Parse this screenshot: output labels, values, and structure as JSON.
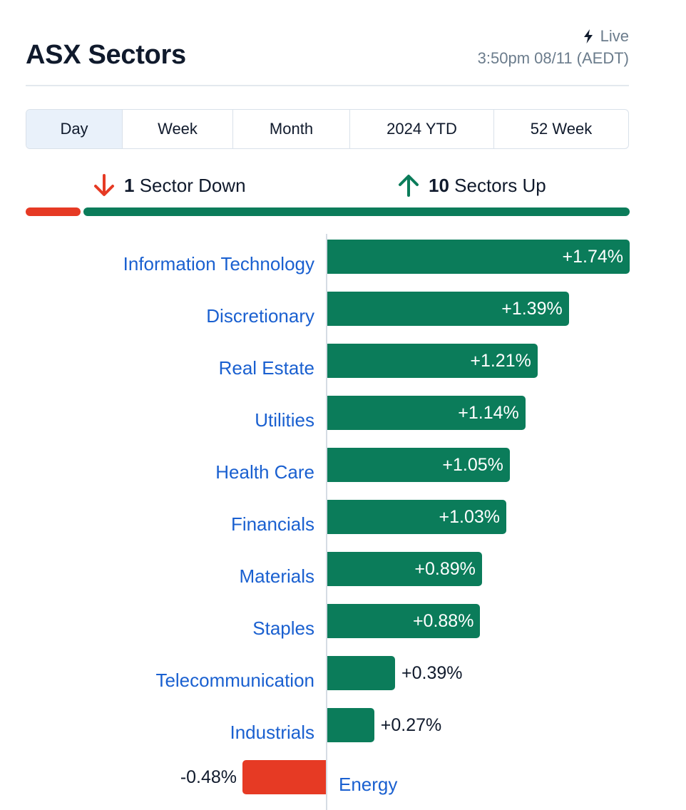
{
  "title": "ASX Sectors",
  "live_label": "Live",
  "timestamp": "3:50pm 08/11 (AEDT)",
  "tabs": [
    {
      "label": "Day",
      "active": true
    },
    {
      "label": "Week",
      "active": false
    },
    {
      "label": "Month",
      "active": false
    },
    {
      "label": "2024 YTD",
      "active": false
    },
    {
      "label": "52 Week",
      "active": false
    }
  ],
  "summary": {
    "down_count": "1",
    "down_label": "Sector Down",
    "up_count": "10",
    "up_label": "Sectors Up"
  },
  "colors": {
    "up": "#0b7c5a",
    "down": "#e63a24",
    "link": "#1a60d0"
  },
  "icons": {
    "live": "lightning-bolt-icon",
    "down": "arrow-down-icon",
    "up": "arrow-up-icon"
  },
  "chart_data": {
    "type": "bar",
    "orientation": "horizontal",
    "categories": [
      "Information Technology",
      "Discretionary",
      "Real Estate",
      "Utilities",
      "Health Care",
      "Financials",
      "Materials",
      "Staples",
      "Telecommunication",
      "Industrials",
      "Energy"
    ],
    "values": [
      1.74,
      1.39,
      1.21,
      1.14,
      1.05,
      1.03,
      0.89,
      0.88,
      0.39,
      0.27,
      -0.48
    ],
    "labels": [
      "+1.74%",
      "+1.39%",
      "+1.21%",
      "+1.14%",
      "+1.05%",
      "+1.03%",
      "+0.89%",
      "+0.88%",
      "+0.39%",
      "+0.27%",
      "-0.48%"
    ],
    "xlim": [
      -0.48,
      1.74
    ]
  }
}
